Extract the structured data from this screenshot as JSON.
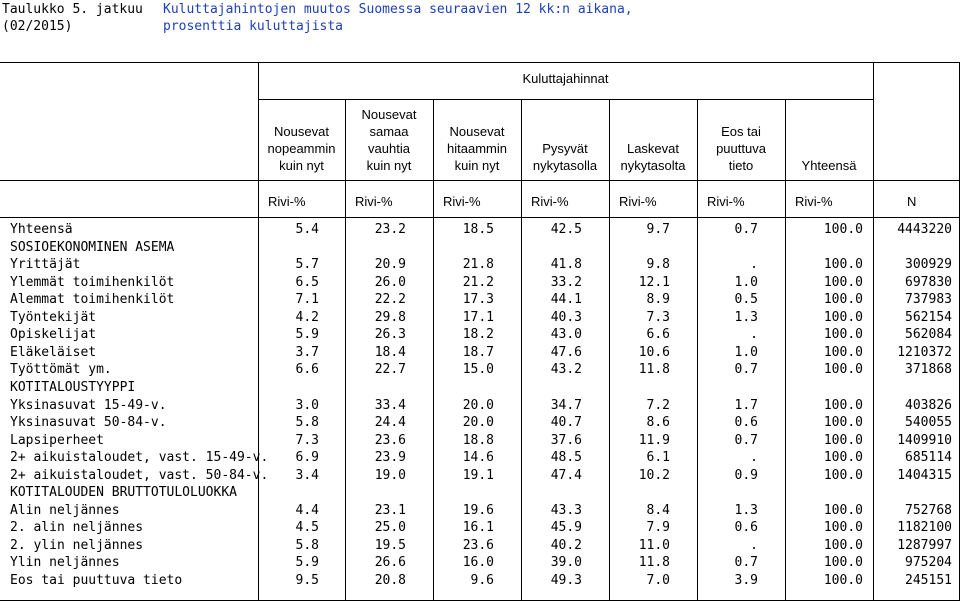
{
  "title": {
    "line1_left": "Taulukko 5. jatkuu",
    "line1_right": "Kuluttajahintojen muutos Suomessa seuraavien 12 kk:n aikana,",
    "line2_left": "(02/2015)",
    "line2_right": "prosenttia kuluttajista"
  },
  "header": {
    "group": "Kuluttajahinnat",
    "columns": [
      [
        "Nousevat",
        "nopeammin",
        "kuin nyt"
      ],
      [
        "Nousevat",
        "samaa",
        "vauhtia",
        "kuin nyt"
      ],
      [
        "Nousevat",
        "hitaammin",
        "kuin nyt"
      ],
      [
        "Pysyvät",
        "nykytasolla"
      ],
      [
        "Laskevat",
        "nykytasolta"
      ],
      [
        "Eos tai",
        "puuttuva",
        "tieto"
      ],
      [
        "Yhteensä"
      ]
    ],
    "units": [
      "Rivi-%",
      "Rivi-%",
      "Rivi-%",
      "Rivi-%",
      "Rivi-%",
      "Rivi-%",
      "Rivi-%",
      "N"
    ]
  },
  "rows": [
    {
      "label": "Yhteensä",
      "values": [
        "5.4",
        "23.2",
        "18.5",
        "42.5",
        "9.7",
        "0.7",
        "100.0",
        "4443220"
      ]
    },
    {
      "label": "SOSIOEKONOMINEN ASEMA",
      "values": []
    },
    {
      "label": "Yrittäjät",
      "values": [
        "5.7",
        "20.9",
        "21.8",
        "41.8",
        "9.8",
        ".",
        "100.0",
        "300929"
      ]
    },
    {
      "label": "Ylemmät toimihenkilöt",
      "values": [
        "6.5",
        "26.0",
        "21.2",
        "33.2",
        "12.1",
        "1.0",
        "100.0",
        "697830"
      ]
    },
    {
      "label": "Alemmat toimihenkilöt",
      "values": [
        "7.1",
        "22.2",
        "17.3",
        "44.1",
        "8.9",
        "0.5",
        "100.0",
        "737983"
      ]
    },
    {
      "label": "Työntekijät",
      "values": [
        "4.2",
        "29.8",
        "17.1",
        "40.3",
        "7.3",
        "1.3",
        "100.0",
        "562154"
      ]
    },
    {
      "label": "Opiskelijat",
      "values": [
        "5.9",
        "26.3",
        "18.2",
        "43.0",
        "6.6",
        ".",
        "100.0",
        "562084"
      ]
    },
    {
      "label": "Eläkeläiset",
      "values": [
        "3.7",
        "18.4",
        "18.7",
        "47.6",
        "10.6",
        "1.0",
        "100.0",
        "1210372"
      ]
    },
    {
      "label": "Työttömät ym.",
      "values": [
        "6.6",
        "22.7",
        "15.0",
        "43.2",
        "11.8",
        "0.7",
        "100.0",
        "371868"
      ]
    },
    {
      "label": "KOTITALOUSTYYPPI",
      "values": []
    },
    {
      "label": "Yksinasuvat 15-49-v.",
      "values": [
        "3.0",
        "33.4",
        "20.0",
        "34.7",
        "7.2",
        "1.7",
        "100.0",
        "403826"
      ]
    },
    {
      "label": "Yksinasuvat 50-84-v.",
      "values": [
        "5.8",
        "24.4",
        "20.0",
        "40.7",
        "8.6",
        "0.6",
        "100.0",
        "540055"
      ]
    },
    {
      "label": "Lapsiperheet",
      "values": [
        "7.3",
        "23.6",
        "18.8",
        "37.6",
        "11.9",
        "0.7",
        "100.0",
        "1409910"
      ]
    },
    {
      "label": "2+ aikuistaloudet, vast. 15-49-v.",
      "values": [
        "6.9",
        "23.9",
        "14.6",
        "48.5",
        "6.1",
        ".",
        "100.0",
        "685114"
      ]
    },
    {
      "label": "2+ aikuistaloudet, vast. 50-84-v.",
      "values": [
        "3.4",
        "19.0",
        "19.1",
        "47.4",
        "10.2",
        "0.9",
        "100.0",
        "1404315"
      ]
    },
    {
      "label": "KOTITALOUDEN BRUTTOTULOLUOKKA",
      "values": []
    },
    {
      "label": "Alin neljännes",
      "values": [
        "4.4",
        "23.1",
        "19.6",
        "43.3",
        "8.4",
        "1.3",
        "100.0",
        "752768"
      ]
    },
    {
      "label": "2. alin neljännes",
      "values": [
        "4.5",
        "25.0",
        "16.1",
        "45.9",
        "7.9",
        "0.6",
        "100.0",
        "1182100"
      ]
    },
    {
      "label": "2. ylin neljännes",
      "values": [
        "5.8",
        "19.5",
        "23.6",
        "40.2",
        "11.0",
        ".",
        "100.0",
        "1287997"
      ]
    },
    {
      "label": "Ylin neljännes",
      "values": [
        "5.9",
        "26.6",
        "16.0",
        "39.0",
        "11.8",
        "0.7",
        "100.0",
        "975204"
      ]
    },
    {
      "label": "Eos tai puuttuva tieto",
      "values": [
        "9.5",
        "20.8",
        "9.6",
        "49.3",
        "7.0",
        "3.9",
        "100.0",
        "245151"
      ]
    }
  ]
}
